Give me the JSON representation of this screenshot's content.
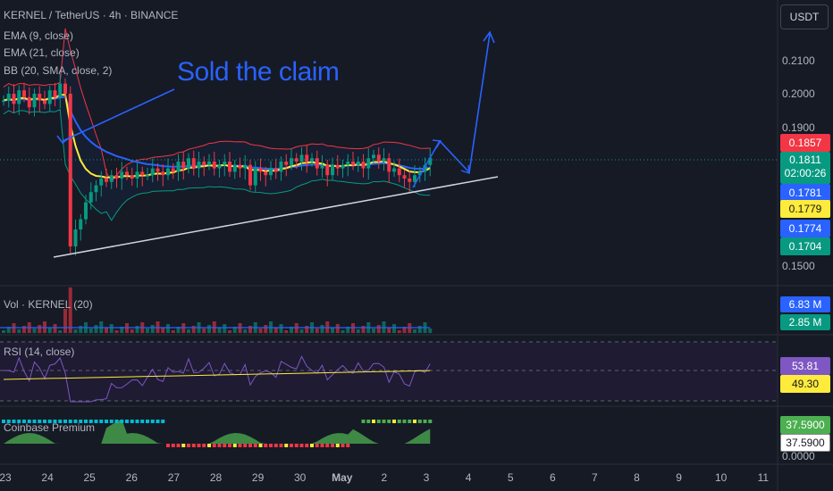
{
  "header": {
    "symbol_line": "KERNEL / TetherUS · 4h · BINANCE",
    "ema9": "EMA (9, close)",
    "ema21": "EMA (21, close)",
    "bb": "BB (20, SMA, close, 2)",
    "currency": "USDT"
  },
  "annotation": "Sold the claim",
  "price_axis": {
    "ticks": [
      "0.2100",
      "0.2000",
      "0.1900",
      "0.1500"
    ],
    "tags": [
      {
        "label": "0.1857",
        "color": "#f23645",
        "text_color": "#ffffff"
      },
      {
        "label": "0.1811",
        "sub": "02:00:26",
        "color": "#089981",
        "text_color": "#ffffff"
      },
      {
        "label": "0.1781",
        "color": "#2962ff",
        "text_color": "#ffffff"
      },
      {
        "label": "0.1779",
        "color": "#ffeb3b",
        "text_color": "#131722"
      },
      {
        "label": "0.1774",
        "color": "#2962ff",
        "text_color": "#ffffff"
      },
      {
        "label": "0.1704",
        "color": "#089981",
        "text_color": "#ffffff"
      }
    ]
  },
  "volume": {
    "label": "Vol · KERNEL (20)",
    "tags": [
      {
        "label": "6.83 M",
        "color": "#2962ff"
      },
      {
        "label": "2.85 M",
        "color": "#089981"
      }
    ]
  },
  "rsi": {
    "label": "RSI (14, close)",
    "tags": [
      {
        "label": "53.81",
        "color": "#7e57c2",
        "text_color": "#ffffff"
      },
      {
        "label": "49.30",
        "color": "#ffeb3b",
        "text_color": "#131722"
      }
    ]
  },
  "coinbase": {
    "label": "Coinbase Premium",
    "tags": [
      {
        "label": "37.5900",
        "color": "#4caf50",
        "text_color": "#ffffff"
      },
      {
        "label": "37.5900",
        "color": "#ffffff",
        "text_color": "#131722"
      }
    ],
    "zero_label": "0.0000"
  },
  "x_axis": [
    "23",
    "24",
    "25",
    "26",
    "27",
    "28",
    "29",
    "30",
    "May",
    "2",
    "3",
    "4",
    "5",
    "6",
    "7",
    "8",
    "9",
    "10",
    "11"
  ],
  "colors": {
    "up": "#089981",
    "down": "#f23645",
    "ema9": "#ffeb3b",
    "ema21": "#2962ff",
    "bb_upper": "#f23645",
    "bb_lower": "#089981",
    "rsi": "#7e57c2",
    "trend": "#d1d4dc"
  },
  "chart_data": {
    "type": "candlestick",
    "symbol": "KERNEL / TetherUS",
    "interval": "4h",
    "last_price": 0.1811,
    "closes": [
      0.198,
      0.2,
      0.197,
      0.201,
      0.199,
      0.196,
      0.2,
      0.198,
      0.197,
      0.201,
      0.199,
      0.203,
      0.2,
      0.155,
      0.16,
      0.163,
      0.168,
      0.171,
      0.173,
      0.175,
      0.174,
      0.176,
      0.175,
      0.177,
      0.176,
      0.175,
      0.177,
      0.176,
      0.176,
      0.178,
      0.177,
      0.176,
      0.178,
      0.177,
      0.18,
      0.178,
      0.181,
      0.178,
      0.18,
      0.179,
      0.18,
      0.178,
      0.179,
      0.18,
      0.177,
      0.179,
      0.178,
      0.179,
      0.173,
      0.178,
      0.177,
      0.176,
      0.178,
      0.177,
      0.18,
      0.179,
      0.181,
      0.18,
      0.182,
      0.18,
      0.181,
      0.178,
      0.179,
      0.176,
      0.179,
      0.178,
      0.179,
      0.18,
      0.179,
      0.18,
      0.178,
      0.181,
      0.182,
      0.18,
      0.181,
      0.177,
      0.178,
      0.176,
      0.175,
      0.174,
      0.176,
      0.177,
      0.179,
      0.1811
    ]
  }
}
